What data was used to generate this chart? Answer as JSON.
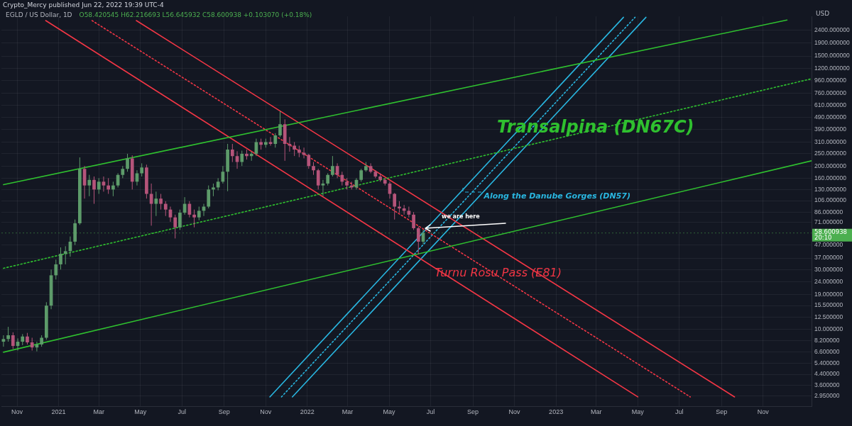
{
  "chart_data": {
    "type": "candlestick",
    "title": "EGLD / US Dollar, 1D",
    "ylabel": "USD",
    "xlim": [
      "2020-10-09",
      "2024-01-11"
    ],
    "ylim": [
      2.45,
      3100
    ],
    "xticks": [
      {
        "value": "2020-11-01",
        "label": "Nov"
      },
      {
        "value": "2021-01-01",
        "label": "2021"
      },
      {
        "value": "2021-03-01",
        "label": "Mar"
      },
      {
        "value": "2021-05-01",
        "label": "May"
      },
      {
        "value": "2021-07-01",
        "label": "Jul"
      },
      {
        "value": "2021-09-01",
        "label": "Sep"
      },
      {
        "value": "2021-11-01",
        "label": "Nov"
      },
      {
        "value": "2022-01-01",
        "label": "2022"
      },
      {
        "value": "2022-03-01",
        "label": "Mar"
      },
      {
        "value": "2022-05-01",
        "label": "May"
      },
      {
        "value": "2022-07-01",
        "label": "Jul"
      },
      {
        "value": "2022-09-01",
        "label": "Sep"
      },
      {
        "value": "2022-11-01",
        "label": "Nov"
      },
      {
        "value": "2023-01-01",
        "label": "2023"
      },
      {
        "value": "2023-03-01",
        "label": "Mar"
      },
      {
        "value": "2023-05-01",
        "label": "May"
      },
      {
        "value": "2023-07-01",
        "label": "Jul"
      },
      {
        "value": "2023-09-01",
        "label": "Sep"
      },
      {
        "value": "2023-11-01",
        "label": "Nov"
      }
    ],
    "yticks": [
      {
        "value": 2.95,
        "label": "2.950000"
      },
      {
        "value": 3.6,
        "label": "3.600000"
      },
      {
        "value": 4.4,
        "label": "4.400000"
      },
      {
        "value": 5.4,
        "label": "5.400000"
      },
      {
        "value": 6.6,
        "label": "6.600000"
      },
      {
        "value": 8.2,
        "label": "8.200000"
      },
      {
        "value": 10,
        "label": "10.000000"
      },
      {
        "value": 12.5,
        "label": "12.500000"
      },
      {
        "value": 15.5,
        "label": "15.500000"
      },
      {
        "value": 19,
        "label": "19.000000"
      },
      {
        "value": 24,
        "label": "24.000000"
      },
      {
        "value": 30,
        "label": "30.000000"
      },
      {
        "value": 37,
        "label": "37.000000"
      },
      {
        "value": 47,
        "label": "47.000000"
      },
      {
        "value": 71,
        "label": "71.000000"
      },
      {
        "value": 86,
        "label": "86.000000"
      },
      {
        "value": 106,
        "label": "106.000000"
      },
      {
        "value": 130,
        "label": "130.000000"
      },
      {
        "value": 160,
        "label": "160.000000"
      },
      {
        "value": 200,
        "label": "200.000000"
      },
      {
        "value": 250,
        "label": "250.000000"
      },
      {
        "value": 310,
        "label": "310.000000"
      },
      {
        "value": 390,
        "label": "390.000000"
      },
      {
        "value": 490,
        "label": "490.000000"
      },
      {
        "value": 610,
        "label": "610.000000"
      },
      {
        "value": 760,
        "label": "760.000000"
      },
      {
        "value": 960,
        "label": "960.000000"
      },
      {
        "value": 1200,
        "label": "1200.000000"
      },
      {
        "value": 1500,
        "label": "1500.000000"
      },
      {
        "value": 1900,
        "label": "1900.000000"
      },
      {
        "value": 2400,
        "label": "2400.000000"
      }
    ],
    "log": "y",
    "grid": true,
    "legend": false,
    "ref_lines": [
      {
        "axis": "y",
        "value": 58.600938,
        "label": "58.600938",
        "color": "#4caf50",
        "line_style": "dotted"
      }
    ],
    "annotations": [
      "Crypto_Mercy published Jun 22, 2022 19:39 UTC-4",
      "O58.420545 H62.216693 L56.645932 C58.600938 +0.103070 (+0.18%)",
      "20:10",
      {
        "text": "Transalpina (DN67C)",
        "x": "2023-02-28",
        "y": 401
      },
      {
        "text": "Along the Danube Gorges (DN57)",
        "x": "2022-09-17",
        "y": 114
      },
      {
        "text": "Turnu Rosu Pass (E81)",
        "x": "2022-10-08",
        "y": 27.8
      },
      "we are here"
    ],
    "series": [
      {
        "type": "line",
        "color": "#2fc02f",
        "line_style": "solid",
        "x": [
          "2020-10-12",
          "2023-12-06"
        ],
        "values": [
          142,
          2900
        ]
      },
      {
        "type": "line",
        "color": "#2fc02f",
        "line_style": "dotted",
        "x": [
          "2020-10-12",
          "2024-01-11"
        ],
        "values": [
          30.7,
          988
        ]
      },
      {
        "type": "line",
        "color": "#2fc02f",
        "line_style": "solid",
        "x": [
          "2020-10-12",
          "2024-01-11"
        ],
        "values": [
          6.6,
          220
        ]
      },
      {
        "type": "line",
        "color": "#f23645",
        "line_style": "solid",
        "x": [
          "2020-12-13",
          "2023-05-01"
        ],
        "values": [
          2870,
          2.91
        ]
      },
      {
        "type": "line",
        "color": "#f23645",
        "line_style": "dotted",
        "x": [
          "2021-02-19",
          "2023-07-17"
        ],
        "values": [
          2870,
          2.91
        ]
      },
      {
        "type": "line",
        "color": "#f23645",
        "line_style": "solid",
        "x": [
          "2021-04-25",
          "2023-09-20"
        ],
        "values": [
          2870,
          2.91
        ]
      },
      {
        "type": "line",
        "color": "#29b6e0",
        "line_style": "solid",
        "x": [
          "2021-11-07",
          "2023-04-10"
        ],
        "values": [
          2.91,
          3050
        ]
      },
      {
        "type": "line",
        "color": "#29b6e0",
        "line_style": "dotted",
        "x": [
          "2021-11-24",
          "2023-04-27"
        ],
        "values": [
          2.91,
          3050
        ]
      },
      {
        "type": "line",
        "color": "#29b6e0",
        "line_style": "solid",
        "x": [
          "2021-12-10",
          "2023-05-13"
        ],
        "values": [
          2.91,
          3050
        ]
      },
      {
        "type": "candlestick",
        "color": "#5d9b6a",
        "x": [
          "2020-10-12",
          "2020-10-19",
          "2020-11-02",
          "2020-11-09",
          "2020-11-30",
          "2020-12-07",
          "2020-12-14",
          "2020-12-21",
          "2020-12-28",
          "2021-01-04",
          "2021-01-11",
          "2021-01-18",
          "2021-01-25",
          "2021-02-01",
          "2021-02-15",
          "2021-03-01",
          "2021-03-22",
          "2021-03-29",
          "2021-04-05",
          "2021-04-12",
          "2021-04-26",
          "2021-05-03",
          "2021-05-24",
          "2021-06-28",
          "2021-07-05",
          "2021-07-26",
          "2021-08-02",
          "2021-08-09",
          "2021-08-16",
          "2021-08-23",
          "2021-08-30",
          "2021-09-06",
          "2021-09-27",
          "2021-10-11",
          "2021-10-18",
          "2021-11-01",
          "2021-11-15",
          "2021-11-22",
          "2022-01-24",
          "2022-01-31",
          "2022-02-07",
          "2022-03-14",
          "2022-03-21",
          "2022-03-28",
          "2022-06-20"
        ],
        "ohlc": [
          [
            8.0,
            9.0,
            7.3,
            8.4
          ],
          [
            8.4,
            10.5,
            8.0,
            9.0
          ],
          [
            7.4,
            8.5,
            6.8,
            8.0
          ],
          [
            8.0,
            9.2,
            7.5,
            8.8
          ],
          [
            7.2,
            8.0,
            6.7,
            7.6
          ],
          [
            7.6,
            9.0,
            7.3,
            8.6
          ],
          [
            8.6,
            16.5,
            8.3,
            15.5
          ],
          [
            15.5,
            30,
            14.5,
            27
          ],
          [
            27,
            36,
            25,
            33
          ],
          [
            33,
            45,
            30,
            40
          ],
          [
            40,
            46,
            33,
            42
          ],
          [
            42,
            55,
            38,
            50
          ],
          [
            50,
            75,
            47,
            70
          ],
          [
            70,
            234,
            68,
            190
          ],
          [
            140,
            170,
            115,
            155
          ],
          [
            130,
            160,
            120,
            150
          ],
          [
            130,
            150,
            115,
            140
          ],
          [
            140,
            175,
            135,
            170
          ],
          [
            170,
            200,
            160,
            190
          ],
          [
            190,
            250,
            180,
            230
          ],
          [
            150,
            185,
            140,
            175
          ],
          [
            175,
            210,
            165,
            195
          ],
          [
            100,
            125,
            80,
            110
          ],
          [
            65,
            90,
            62,
            85
          ],
          [
            85,
            113,
            82,
            100
          ],
          [
            78,
            95,
            74,
            88
          ],
          [
            88,
            100,
            80,
            95
          ],
          [
            95,
            140,
            92,
            130
          ],
          [
            130,
            145,
            115,
            135
          ],
          [
            135,
            160,
            128,
            150
          ],
          [
            150,
            200,
            145,
            180
          ],
          [
            180,
            300,
            126,
            270
          ],
          [
            215,
            265,
            200,
            250
          ],
          [
            240,
            260,
            220,
            250
          ],
          [
            250,
            330,
            240,
            310
          ],
          [
            295,
            330,
            280,
            310
          ],
          [
            300,
            365,
            280,
            350
          ],
          [
            350,
            547,
            340,
            430
          ],
          [
            140,
            155,
            115,
            145
          ],
          [
            145,
            175,
            140,
            170
          ],
          [
            170,
            240,
            165,
            200
          ],
          [
            135,
            160,
            130,
            155
          ],
          [
            155,
            190,
            150,
            185
          ],
          [
            185,
            215,
            180,
            200
          ],
          [
            50,
            62.2,
            48,
            58.6
          ]
        ]
      },
      {
        "type": "candlestick",
        "color": "#b5547a",
        "x": [
          "2020-10-26",
          "2020-11-16",
          "2020-11-23",
          "2021-02-08",
          "2021-02-22",
          "2021-03-08",
          "2021-03-15",
          "2021-04-19",
          "2021-05-10",
          "2021-05-17",
          "2021-05-31",
          "2021-06-07",
          "2021-06-14",
          "2021-06-21",
          "2021-07-12",
          "2021-07-19",
          "2021-09-13",
          "2021-09-20",
          "2021-10-04",
          "2021-10-25",
          "2021-11-08",
          "2021-11-29",
          "2021-12-06",
          "2021-12-13",
          "2021-12-20",
          "2021-12-27",
          "2022-01-03",
          "2022-01-10",
          "2022-01-17",
          "2022-02-14",
          "2022-02-21",
          "2022-02-28",
          "2022-03-07",
          "2022-04-04",
          "2022-04-11",
          "2022-04-18",
          "2022-04-25",
          "2022-05-02",
          "2022-05-09",
          "2022-05-16",
          "2022-05-23",
          "2022-05-30",
          "2022-06-06",
          "2022-06-13"
        ],
        "ohlc": [
          [
            9.0,
            9.5,
            7.0,
            7.4
          ],
          [
            8.8,
            9.4,
            7.6,
            7.9
          ],
          [
            7.9,
            8.6,
            6.8,
            7.2
          ],
          [
            190,
            200,
            110,
            140
          ],
          [
            155,
            165,
            100,
            130
          ],
          [
            150,
            165,
            125,
            140
          ],
          [
            140,
            160,
            120,
            130
          ],
          [
            230,
            243,
            130,
            150
          ],
          [
            195,
            205,
            110,
            120
          ],
          [
            120,
            145,
            67,
            100
          ],
          [
            110,
            120,
            90,
            100
          ],
          [
            100,
            105,
            80,
            90
          ],
          [
            90,
            95,
            72,
            78
          ],
          [
            78,
            82,
            53,
            65
          ],
          [
            100,
            105,
            78,
            82
          ],
          [
            82,
            90,
            65,
            78
          ],
          [
            270,
            300,
            215,
            240
          ],
          [
            240,
            262,
            190,
            215
          ],
          [
            250,
            270,
            225,
            240
          ],
          [
            310,
            330,
            270,
            295
          ],
          [
            310,
            340,
            290,
            300
          ],
          [
            430,
            470,
            220,
            300
          ],
          [
            300,
            340,
            260,
            290
          ],
          [
            290,
            310,
            240,
            270
          ],
          [
            270,
            290,
            235,
            255
          ],
          [
            255,
            280,
            230,
            245
          ],
          [
            245,
            250,
            190,
            200
          ],
          [
            200,
            215,
            170,
            185
          ],
          [
            185,
            190,
            130,
            140
          ],
          [
            200,
            210,
            160,
            170
          ],
          [
            170,
            180,
            140,
            150
          ],
          [
            150,
            160,
            130,
            140
          ],
          [
            140,
            150,
            130,
            135
          ],
          [
            200,
            210,
            175,
            180
          ],
          [
            180,
            185,
            160,
            165
          ],
          [
            165,
            175,
            150,
            155
          ],
          [
            155,
            160,
            140,
            145
          ],
          [
            145,
            150,
            110,
            120
          ],
          [
            120,
            122,
            75,
            95
          ],
          [
            95,
            105,
            85,
            92
          ],
          [
            92,
            98,
            82,
            88
          ],
          [
            88,
            95,
            78,
            82
          ],
          [
            82,
            86,
            62,
            64
          ],
          [
            64,
            66,
            39.5,
            50
          ]
        ]
      }
    ]
  }
}
